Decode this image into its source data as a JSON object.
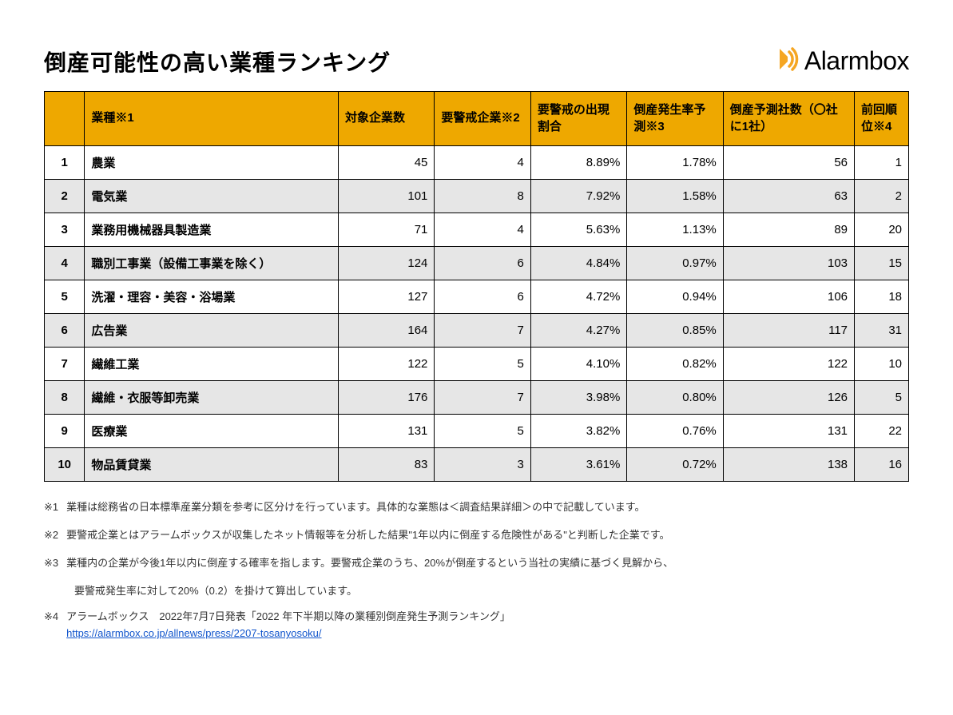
{
  "title": "倒産可能性の高い業種ランキング",
  "brand": {
    "name": "Alarmbox",
    "icon_color": "#f5a623"
  },
  "table": {
    "type": "table",
    "header_bg": "#eea800",
    "row_alt_bg": "#e6e6e6",
    "border_color": "#000000",
    "columns": {
      "rank": "",
      "industry": "業種※1",
      "target": "対象企業数",
      "alert": "要警戒企業※2",
      "alert_ratio": "要警戒の出現割合",
      "bankruptcy_rate": "倒産発生率予測※3",
      "predicted": "倒産予測社数（〇社に1社）",
      "prev_rank": "前回順位※4"
    },
    "rows": [
      {
        "rank": "1",
        "industry": "農業",
        "target": "45",
        "alert": "4",
        "alert_ratio": "8.89%",
        "bankruptcy_rate": "1.78%",
        "predicted": "56",
        "prev_rank": "1"
      },
      {
        "rank": "2",
        "industry": "電気業",
        "target": "101",
        "alert": "8",
        "alert_ratio": "7.92%",
        "bankruptcy_rate": "1.58%",
        "predicted": "63",
        "prev_rank": "2"
      },
      {
        "rank": "3",
        "industry": "業務用機械器具製造業",
        "target": "71",
        "alert": "4",
        "alert_ratio": "5.63%",
        "bankruptcy_rate": "1.13%",
        "predicted": "89",
        "prev_rank": "20"
      },
      {
        "rank": "4",
        "industry": "職別工事業（設備工事業を除く）",
        "target": "124",
        "alert": "6",
        "alert_ratio": "4.84%",
        "bankruptcy_rate": "0.97%",
        "predicted": "103",
        "prev_rank": "15"
      },
      {
        "rank": "5",
        "industry": "洗濯・理容・美容・浴場業",
        "target": "127",
        "alert": "6",
        "alert_ratio": "4.72%",
        "bankruptcy_rate": "0.94%",
        "predicted": "106",
        "prev_rank": "18"
      },
      {
        "rank": "6",
        "industry": "広告業",
        "target": "164",
        "alert": "7",
        "alert_ratio": "4.27%",
        "bankruptcy_rate": "0.85%",
        "predicted": "117",
        "prev_rank": "31"
      },
      {
        "rank": "7",
        "industry": "繊維工業",
        "target": "122",
        "alert": "5",
        "alert_ratio": "4.10%",
        "bankruptcy_rate": "0.82%",
        "predicted": "122",
        "prev_rank": "10"
      },
      {
        "rank": "8",
        "industry": "繊維・衣服等卸売業",
        "target": "176",
        "alert": "7",
        "alert_ratio": "3.98%",
        "bankruptcy_rate": "0.80%",
        "predicted": "126",
        "prev_rank": "5"
      },
      {
        "rank": "9",
        "industry": "医療業",
        "target": "131",
        "alert": "5",
        "alert_ratio": "3.82%",
        "bankruptcy_rate": "0.76%",
        "predicted": "131",
        "prev_rank": "22"
      },
      {
        "rank": "10",
        "industry": "物品賃貸業",
        "target": "83",
        "alert": "3",
        "alert_ratio": "3.61%",
        "bankruptcy_rate": "0.72%",
        "predicted": "138",
        "prev_rank": "16"
      }
    ]
  },
  "notes": {
    "n1": {
      "label": "※1",
      "text": "業種は総務省の日本標準産業分類を参考に区分けを行っています。具体的な業態は＜調査結果詳細＞の中で記載しています。"
    },
    "n2": {
      "label": "※2",
      "text": "要警戒企業とはアラームボックスが収集したネット情報等を分析した結果\"1年以内に倒産する危険性がある\"と判断した企業です。"
    },
    "n3": {
      "label": "※3",
      "text": "業種内の企業が今後1年以内に倒産する確率を指します。要警戒企業のうち、20%が倒産するという当社の実績に基づく見解から、"
    },
    "n3b": {
      "text": "要警戒発生率に対して20%（0.2）を掛けて算出しています。"
    },
    "n4": {
      "label": "※4",
      "text": "アラームボックス　2022年7月7日発表「2022 年下半期以降の業種別倒産発生予測ランキング」"
    },
    "n4link": {
      "text": "https://alarmbox.co.jp/allnews/press/2207-tosanyosoku/"
    }
  }
}
